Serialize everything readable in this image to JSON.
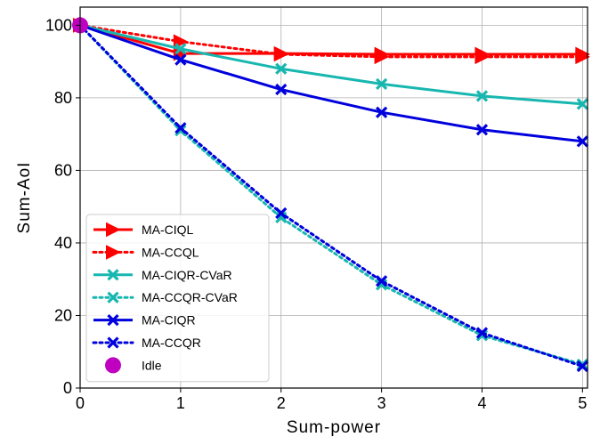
{
  "chart_data": {
    "type": "line",
    "xlabel": "Sum-power",
    "ylabel": "Sum-AoI",
    "xlim": [
      0,
      5.05
    ],
    "ylim": [
      0,
      105
    ],
    "xticks": [
      0,
      1,
      2,
      3,
      4,
      5
    ],
    "yticks": [
      0,
      20,
      40,
      60,
      80,
      100
    ],
    "grid": true,
    "legend_position": "lower-left",
    "x": [
      0,
      1,
      2,
      3,
      4,
      5
    ],
    "series": [
      {
        "name": "MA-CIQL",
        "color": "#ff0000",
        "linestyle": "solid",
        "marker": "triangle-right",
        "values": [
          100,
          92.2,
          92.2,
          92.0,
          92.0,
          92.0
        ]
      },
      {
        "name": "MA-CCQL",
        "color": "#ff0000",
        "linestyle": "dotted",
        "marker": "triangle-right",
        "values": [
          100,
          95.5,
          92.0,
          91.3,
          91.3,
          91.3
        ]
      },
      {
        "name": "MA-CIQR-CVaR",
        "color": "#17b7b0",
        "linestyle": "solid",
        "marker": "x",
        "values": [
          100,
          93.5,
          88.0,
          83.8,
          80.5,
          78.3
        ]
      },
      {
        "name": "MA-CCQR-CVaR",
        "color": "#17b7b0",
        "linestyle": "dotted",
        "marker": "x",
        "values": [
          100,
          71.0,
          47.0,
          28.5,
          14.5,
          6.5
        ]
      },
      {
        "name": "MA-CIQR",
        "color": "#0000dd",
        "linestyle": "solid",
        "marker": "x",
        "values": [
          100,
          90.5,
          82.3,
          76.0,
          71.2,
          68.0
        ]
      },
      {
        "name": "MA-CCQR",
        "color": "#0000dd",
        "linestyle": "dotted",
        "marker": "x",
        "values": [
          100,
          71.7,
          48.2,
          29.5,
          15.2,
          6.0
        ]
      }
    ],
    "idle": {
      "name": "Idle",
      "color": "#c000c0",
      "marker": "circle",
      "x": 0,
      "y": 100
    }
  }
}
